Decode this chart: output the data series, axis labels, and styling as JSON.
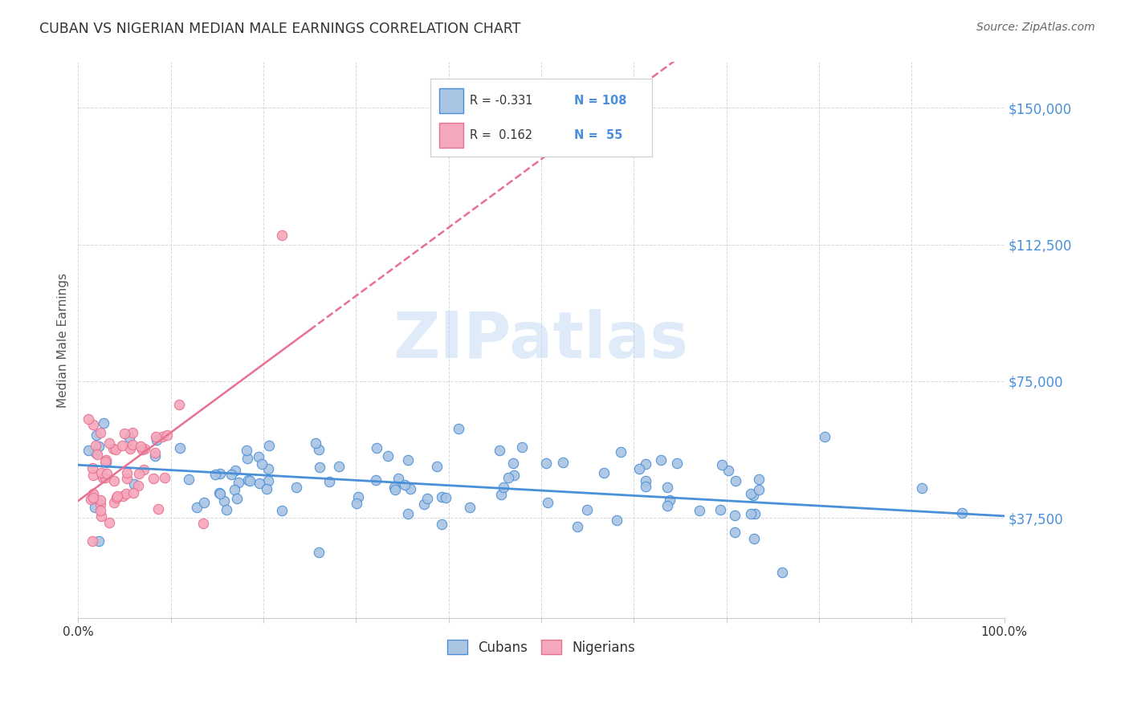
{
  "title": "CUBAN VS NIGERIAN MEDIAN MALE EARNINGS CORRELATION CHART",
  "source": "Source: ZipAtlas.com",
  "ylabel": "Median Male Earnings",
  "watermark": "ZIPatlas",
  "ytick_labels": [
    "$37,500",
    "$75,000",
    "$112,500",
    "$150,000"
  ],
  "ytick_values": [
    37500,
    75000,
    112500,
    150000
  ],
  "ymin": 10000,
  "ymax": 162500,
  "xmin": 0.0,
  "xmax": 1.0,
  "cuban_color": "#aac4e3",
  "nigerian_color": "#f5a8bb",
  "cuban_line_color": "#4a90d9",
  "nigerian_line_color": "#e87090",
  "title_color": "#333333",
  "source_color": "#666666",
  "axis_label_color": "#555555",
  "ytick_color": "#4a90d9",
  "background_color": "#ffffff",
  "grid_color": "#d8d8d8",
  "legend_n_color": "#4a90d9"
}
